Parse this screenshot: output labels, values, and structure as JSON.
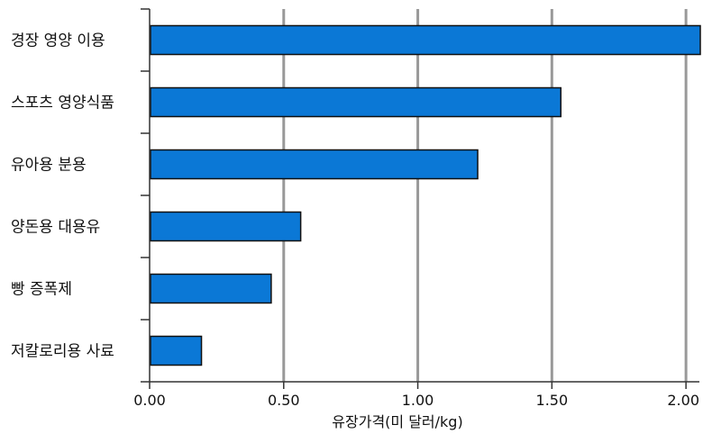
{
  "chart_data": {
    "type": "bar",
    "orientation": "horizontal",
    "title": "",
    "xlabel": "유장가격(미 달러/kg)",
    "ylabel": "",
    "categories": [
      "경장 영양 이용",
      "스포츠 영양식품",
      "유아용 분용",
      "양돈용 대용유",
      "빵 증폭제",
      "저칼로리용 사료"
    ],
    "values": [
      2.05,
      1.53,
      1.22,
      0.56,
      0.45,
      0.19
    ],
    "xlim": [
      0,
      2.05
    ],
    "xticks": [
      0,
      0.5,
      1.0,
      1.5,
      2.0
    ],
    "xtick_labels": [
      "0.00",
      "0.50",
      "1.00",
      "1.50",
      "2.00"
    ],
    "grid": "vertical",
    "legend": "none",
    "bar_color": "#0b78d6",
    "bar_edge_color": "#111111",
    "grid_color": "#999999"
  }
}
